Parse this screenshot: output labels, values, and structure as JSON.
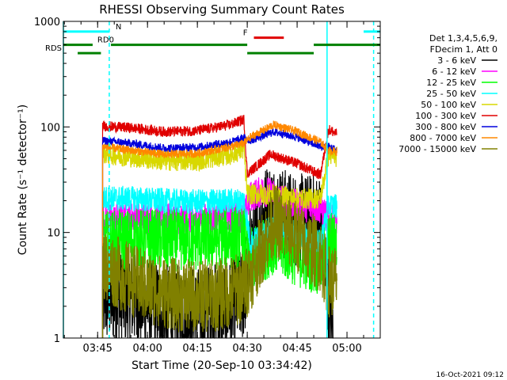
{
  "chart_data": {
    "type": "line",
    "title": "RHESSI Observing Summary Count Rates",
    "xlabel": "Start Time (20-Sep-10 03:34:42)",
    "ylabel": "Count Rate (s⁻¹ detector⁻¹)",
    "yscale": "log",
    "ylim": [
      1,
      1000
    ],
    "xlim": [
      "03:34:42",
      "05:10:00"
    ],
    "x_unit": "UT (HH:MM)",
    "x_ticks": [
      "03:45",
      "04:00",
      "04:15",
      "04:30",
      "04:45",
      "05:00"
    ],
    "y_ticks": [
      "1",
      "10",
      "100",
      "1000"
    ],
    "grid": false,
    "legend_position": "right",
    "legend_header": [
      "Det 1,3,4,5,6,9,",
      "FDecim 1, Att 0"
    ],
    "footer": "16-Oct-2021 09:12",
    "legend": [
      {
        "name": "3 - 6 keV",
        "color": "#000000"
      },
      {
        "name": "6 - 12 keV",
        "color": "#ff00ff"
      },
      {
        "name": "12 - 25 keV",
        "color": "#00ff00"
      },
      {
        "name": "25 - 50 keV",
        "color": "#00ffff"
      },
      {
        "name": "50 - 100 keV",
        "color": "#d8d800"
      },
      {
        "name": "100 - 300 keV",
        "color": "#e00000"
      },
      {
        "name": "300 - 800 keV",
        "color": "#0000dd"
      },
      {
        "name": "800 - 7000 keV",
        "color": "#ff8800"
      },
      {
        "name": "7000 - 15000 keV",
        "color": "#808000"
      }
    ],
    "flags": [
      {
        "label": "N",
        "color": "#00ffff",
        "y": 800,
        "segments": [
          [
            "03:34:42",
            "03:48:30"
          ],
          [
            "05:05:00",
            "05:10:00"
          ]
        ]
      },
      {
        "label": "F",
        "color": "#e00000",
        "y": 700,
        "segments": [
          [
            "04:32:00",
            "04:41:00"
          ]
        ]
      },
      {
        "label": "RD0",
        "color": "#008000",
        "y": 600,
        "segments": [
          [
            "03:34:42",
            "03:43:30"
          ],
          [
            "03:49:00",
            "04:30:00"
          ],
          [
            "04:50:00",
            "05:10:00"
          ]
        ]
      },
      {
        "label": "RDS",
        "color": "#008000",
        "y": 500,
        "segments": [
          [
            "03:39:00",
            "03:46:00"
          ],
          [
            "04:30:00",
            "04:50:00"
          ]
        ]
      }
    ],
    "vlines": [
      {
        "time": "03:34:42",
        "color": "#00ffff",
        "style": "solid"
      },
      {
        "time": "03:48:30",
        "color": "#00ffff",
        "style": "dashed"
      },
      {
        "time": "04:54:00",
        "color": "#00ffff",
        "style": "solid"
      },
      {
        "time": "05:08:00",
        "color": "#00ffff",
        "style": "dashed"
      }
    ],
    "series": [
      {
        "name": "3 - 6 keV",
        "color": "#000000",
        "noise": 0.45,
        "points": [
          [
            "03:46:30",
            2.4
          ],
          [
            "03:55:00",
            2.4
          ],
          [
            "04:05:00",
            1.8
          ],
          [
            "04:15:00",
            1.7
          ],
          [
            "04:25:00",
            2.0
          ],
          [
            "04:29:00",
            2.6
          ],
          [
            "04:31:00",
            7.0
          ],
          [
            "04:36:00",
            17.0
          ],
          [
            "04:45:00",
            13.0
          ],
          [
            "04:52:00",
            13.0
          ],
          [
            "04:54:30",
            2.0
          ],
          [
            "04:56:00",
            1.2
          ]
        ]
      },
      {
        "name": "6 - 12 keV",
        "color": "#ff00ff",
        "noise": 0.15,
        "points": [
          [
            "03:46:30",
            13.0
          ],
          [
            "03:55:00",
            14.0
          ],
          [
            "04:05:00",
            13.5
          ],
          [
            "04:15:00",
            13.5
          ],
          [
            "04:25:00",
            14.0
          ],
          [
            "04:29:00",
            14.0
          ],
          [
            "04:31:00",
            22.0
          ],
          [
            "04:35:00",
            25.0
          ],
          [
            "04:40:00",
            21.0
          ],
          [
            "04:45:00",
            18.0
          ],
          [
            "04:52:00",
            17.0
          ],
          [
            "04:54:30",
            13.0
          ],
          [
            "04:57:00",
            13.0
          ]
        ]
      },
      {
        "name": "12 - 25 keV",
        "color": "#00ff00",
        "noise": 0.3,
        "points": [
          [
            "03:46:30",
            8.0
          ],
          [
            "03:55:00",
            8.5
          ],
          [
            "04:05:00",
            8.5
          ],
          [
            "04:15:00",
            8.5
          ],
          [
            "04:25:00",
            9.0
          ],
          [
            "04:29:00",
            9.0
          ],
          [
            "04:31:00",
            5.5
          ],
          [
            "04:38:00",
            8.0
          ],
          [
            "04:45:00",
            6.0
          ],
          [
            "04:52:00",
            5.0
          ],
          [
            "04:54:30",
            8.0
          ],
          [
            "04:57:00",
            8.0
          ]
        ]
      },
      {
        "name": "25 - 50 keV",
        "color": "#00ffff",
        "noise": 0.12,
        "points": [
          [
            "03:46:30",
            21.0
          ],
          [
            "03:55:00",
            21.0
          ],
          [
            "04:05:00",
            20.0
          ],
          [
            "04:15:00",
            19.5
          ],
          [
            "04:25:00",
            20.0
          ],
          [
            "04:29:00",
            20.0
          ],
          [
            "04:31:00",
            8.0
          ],
          [
            "04:37:00",
            11.0
          ],
          [
            "04:45:00",
            10.0
          ],
          [
            "04:52:00",
            8.0
          ],
          [
            "04:54:30",
            18.0
          ],
          [
            "04:57:00",
            18.0
          ]
        ]
      },
      {
        "name": "50 - 100 keV",
        "color": "#d8d800",
        "noise": 0.1,
        "points": [
          [
            "03:46:30",
            56.0
          ],
          [
            "03:55:00",
            52.0
          ],
          [
            "04:05:00",
            48.0
          ],
          [
            "04:15:00",
            48.0
          ],
          [
            "04:25:00",
            55.0
          ],
          [
            "04:29:00",
            62.0
          ],
          [
            "04:30:00",
            23.0
          ],
          [
            "04:37:00",
            23.0
          ],
          [
            "04:45:00",
            21.0
          ],
          [
            "04:52:00",
            21.0
          ],
          [
            "04:54:30",
            55.0
          ],
          [
            "04:57:00",
            52.0
          ]
        ]
      },
      {
        "name": "100 - 300 keV",
        "color": "#e00000",
        "noise": 0.05,
        "points": [
          [
            "03:46:30",
            102.0
          ],
          [
            "03:55:00",
            98.0
          ],
          [
            "04:05:00",
            90.0
          ],
          [
            "04:15:00",
            92.0
          ],
          [
            "04:25:00",
            105.0
          ],
          [
            "04:29:00",
            118.0
          ],
          [
            "04:30:00",
            36.0
          ],
          [
            "04:37:00",
            55.0
          ],
          [
            "04:45:00",
            45.0
          ],
          [
            "04:52:00",
            35.0
          ],
          [
            "04:54:30",
            95.0
          ],
          [
            "04:57:00",
            85.0
          ]
        ]
      },
      {
        "name": "300 - 800 keV",
        "color": "#0000dd",
        "noise": 0.04,
        "points": [
          [
            "03:46:30",
            74.0
          ],
          [
            "03:55:00",
            70.0
          ],
          [
            "04:05:00",
            63.0
          ],
          [
            "04:15:00",
            64.0
          ],
          [
            "04:25:00",
            72.0
          ],
          [
            "04:29:00",
            78.0
          ],
          [
            "04:31:00",
            75.0
          ],
          [
            "04:38:00",
            90.0
          ],
          [
            "04:45:00",
            80.0
          ],
          [
            "04:52:00",
            65.0
          ],
          [
            "04:54:30",
            65.0
          ],
          [
            "04:57:00",
            60.0
          ]
        ]
      },
      {
        "name": "800 - 7000 keV",
        "color": "#ff8800",
        "noise": 0.04,
        "points": [
          [
            "03:46:30",
            65.0
          ],
          [
            "03:55:00",
            60.0
          ],
          [
            "04:05:00",
            55.0
          ],
          [
            "04:15:00",
            56.0
          ],
          [
            "04:25:00",
            65.0
          ],
          [
            "04:29:00",
            70.0
          ],
          [
            "04:31:00",
            80.0
          ],
          [
            "04:38:00",
            105.0
          ],
          [
            "04:45:00",
            90.0
          ],
          [
            "04:52:00",
            72.0
          ],
          [
            "04:54:30",
            60.0
          ],
          [
            "04:57:00",
            58.0
          ]
        ]
      },
      {
        "name": "7000 - 15000 keV",
        "color": "#808000",
        "noise": 0.35,
        "points": [
          [
            "03:46:30",
            5.0
          ],
          [
            "03:52:00",
            4.0
          ],
          [
            "04:00:00",
            3.0
          ],
          [
            "04:10:00",
            2.5
          ],
          [
            "04:20:00",
            2.5
          ],
          [
            "04:29:00",
            3.0
          ],
          [
            "04:31:00",
            4.0
          ],
          [
            "04:38:00",
            13.0
          ],
          [
            "04:45:00",
            9.0
          ],
          [
            "04:52:00",
            6.0
          ],
          [
            "04:54:30",
            3.5
          ],
          [
            "04:57:00",
            3.5
          ]
        ]
      }
    ]
  }
}
